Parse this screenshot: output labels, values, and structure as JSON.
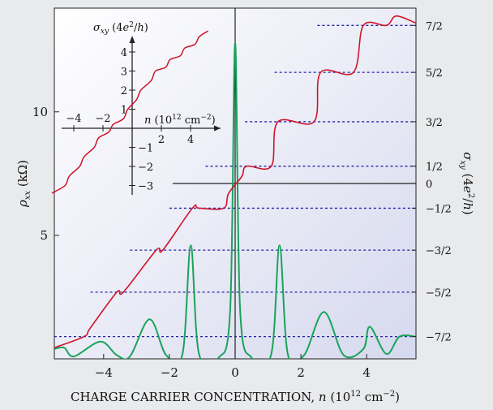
{
  "chart_data": {
    "type": "line",
    "xlabel": "CHARGE CARRIER CONCENTRATION, n (10^12 cm^-2)",
    "ylabel_left": "ρxx (kΩ)",
    "ylabel_right": "σxy (4e²/h)",
    "xlim": [
      -5.5,
      5.5
    ],
    "xticks": [
      -4,
      -2,
      0,
      2,
      4
    ],
    "xtick_labels": [
      "−4",
      "−2",
      "0",
      "2",
      "4"
    ],
    "ylim_left": [
      0,
      14.2
    ],
    "yticks_left": [
      5,
      10
    ],
    "right_levels": [
      {
        "value": 3.5,
        "label": "7/2",
        "x_start": 2.5
      },
      {
        "value": 2.5,
        "label": "5/2",
        "x_start": 1.2
      },
      {
        "value": 1.5,
        "label": "3/2",
        "x_start": 0.3
      },
      {
        "value": 0.5,
        "label": "1/2",
        "x_start": -0.9
      },
      {
        "value": 0,
        "label": "0",
        "x_start": -1.9,
        "solid": true
      },
      {
        "value": -0.5,
        "label": "−1/2",
        "x_start": -2.0
      },
      {
        "value": -1.5,
        "label": "−3/2",
        "x_start": -3.2
      },
      {
        "value": -2.5,
        "label": "−5/2",
        "x_start": -4.4
      },
      {
        "value": -3.5,
        "label": "−7/2",
        "x_start": -5.5
      }
    ],
    "sigma_levels_y_left": {
      "3.5": 13.5,
      "2.5": 11.6,
      "1.5": 9.6,
      "0.5": 7.8,
      "0": 7.1,
      "-0.5": 6.1,
      "-1.5": 4.4,
      "-2.5": 2.7,
      "-3.5": 0.9
    },
    "series": [
      {
        "color": "#d01428",
        "axis": "right",
        "x": [
          -5.5,
          -4.6,
          -4.4,
          -3.6,
          -3.4,
          -2.4,
          -2.2,
          -1.3,
          -1.1,
          -0.35,
          -0.2,
          0.2,
          0.35,
          1.1,
          1.3,
          2.4,
          2.6,
          3.6,
          3.9,
          4.6,
          4.9,
          5.5
        ],
        "y": [
          -3.75,
          -3.5,
          -3.3,
          -2.5,
          -2.5,
          -1.5,
          -1.5,
          -0.5,
          -0.5,
          -0.5,
          -0.2,
          0.2,
          0.5,
          0.5,
          1.5,
          1.5,
          2.5,
          2.5,
          3.5,
          3.5,
          3.7,
          3.55
        ]
      },
      {
        "color": "#1aa35a",
        "axis": "left",
        "x": [
          -5.5,
          -5.2,
          -4.9,
          -4.1,
          -3.6,
          -3.2,
          -2.6,
          -2.1,
          -1.6,
          -1.35,
          -1.1,
          -0.5,
          -0.15,
          0,
          0.15,
          0.5,
          1.1,
          1.35,
          1.6,
          2.1,
          2.7,
          3.3,
          3.9,
          4.1,
          4.6,
          5.0,
          5.5
        ],
        "y": [
          0.4,
          0.45,
          0.1,
          0.7,
          0.15,
          0.1,
          1.6,
          0.15,
          0.2,
          4.6,
          0.2,
          0.05,
          2.0,
          12.8,
          2.0,
          0.05,
          0.2,
          4.6,
          0.2,
          0.15,
          1.9,
          0.15,
          0.4,
          1.3,
          0.2,
          0.9,
          0.9
        ]
      }
    ],
    "inset": {
      "xlabel": "n (10^12 cm^-2)",
      "ylabel": "σxy (4e²/h)",
      "xticks": [
        -4,
        -2,
        2,
        4
      ],
      "xtick_labels": [
        "−4",
        "−2",
        "2",
        "4"
      ],
      "yticks": [
        -3,
        -2,
        -1,
        1,
        2,
        3,
        4
      ],
      "ytick_labels": [
        "−3",
        "−2",
        "−1",
        "1",
        "2",
        "3",
        "4"
      ],
      "series": {
        "color": "#d01428",
        "x": [
          -5.5,
          -4.6,
          -4.3,
          -3.6,
          -3.3,
          -2.6,
          -2.3,
          -1.6,
          -1.3,
          -0.6,
          -0.3,
          0.3,
          0.6,
          1.3,
          1.6,
          2.3,
          2.6,
          3.3,
          3.6,
          4.3,
          4.6,
          5.2
        ],
        "y": [
          -3.4,
          -3.0,
          -2.5,
          -2.0,
          -1.5,
          -1.0,
          -0.5,
          -0.2,
          0.2,
          0.5,
          1.0,
          1.5,
          2.0,
          2.5,
          3.0,
          3.2,
          3.6,
          3.8,
          4.2,
          4.4,
          4.8,
          5.1
        ]
      }
    }
  }
}
